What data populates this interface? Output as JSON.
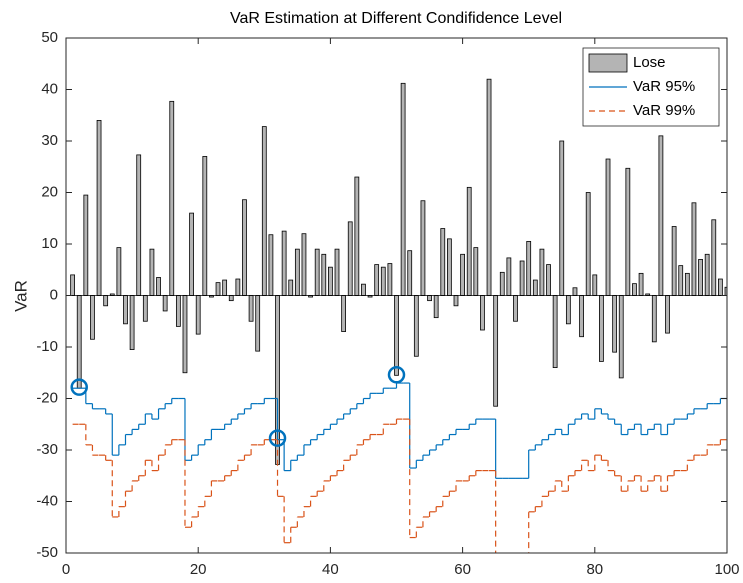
{
  "chart_data": {
    "type": "bar_stairs",
    "title": "VaR Estimation at Different Condifidence Level",
    "y_label": "VaR",
    "x": [
      1,
      2,
      3,
      4,
      5,
      6,
      7,
      8,
      9,
      10,
      11,
      12,
      13,
      14,
      15,
      16,
      17,
      18,
      19,
      20,
      21,
      22,
      23,
      24,
      25,
      26,
      27,
      28,
      29,
      30,
      31,
      32,
      33,
      34,
      35,
      36,
      37,
      38,
      39,
      40,
      41,
      42,
      43,
      44,
      45,
      46,
      47,
      48,
      49,
      50,
      51,
      52,
      53,
      54,
      55,
      56,
      57,
      58,
      59,
      60,
      61,
      62,
      63,
      64,
      65,
      66,
      67,
      68,
      69,
      70,
      71,
      72,
      73,
      74,
      75,
      76,
      77,
      78,
      79,
      80,
      81,
      82,
      83,
      84,
      85,
      86,
      87,
      88,
      89,
      90,
      91,
      92,
      93,
      94,
      95,
      96,
      97,
      98,
      99,
      100
    ],
    "series": [
      {
        "name": "Lose",
        "kind": "bar",
        "color": "#b4b4b4",
        "values": [
          4,
          -18,
          19.5,
          -8.5,
          34,
          -2,
          0.3,
          9.3,
          -5.5,
          -10.5,
          27.3,
          -5,
          9,
          3.5,
          -3,
          37.7,
          -6,
          -15,
          16,
          -7.5,
          27,
          -0.3,
          2.5,
          3,
          -1,
          3.2,
          18.6,
          -5,
          -10.8,
          32.8,
          11.8,
          -32.8,
          12.5,
          3,
          9,
          12,
          -0.3,
          9,
          8,
          5.5,
          9,
          -7,
          14.3,
          23,
          2.2,
          -0.3,
          6,
          5.5,
          6.2,
          -15.5,
          41.2,
          8.7,
          -11.8,
          18.4,
          -1,
          -4.3,
          13,
          11,
          -2,
          8,
          21,
          9.3,
          -6.7,
          42,
          -21.5,
          4.5,
          7.3,
          -5,
          6.7,
          10.5,
          3,
          9,
          6,
          -14,
          30,
          -5.5,
          1.5,
          -8,
          20,
          4,
          -12.8,
          26.5,
          -11,
          -16,
          24.7,
          2.3,
          4.3,
          0.3,
          -9,
          31,
          -7.3,
          13.4,
          5.8,
          4.3,
          18,
          7,
          8,
          14.7,
          3.2,
          1.6
        ]
      },
      {
        "name": "VaR 95%",
        "kind": "stairs",
        "color": "#0072bd",
        "dash": false,
        "values": [
          -18,
          -18,
          -21,
          -22,
          -22,
          -23,
          -31,
          -29,
          -27,
          -26,
          -25,
          -23,
          -24,
          -22,
          -21,
          -20,
          -20,
          -32,
          -31,
          -29,
          -28,
          -26,
          -26,
          -25,
          -24,
          -23,
          -22,
          -21,
          -21,
          -20,
          -20,
          -28,
          -34,
          -32,
          -31,
          -29,
          -28,
          -27,
          -26,
          -25,
          -24,
          -23,
          -22,
          -21,
          -20,
          -19,
          -19,
          -18,
          -18,
          -17,
          -17,
          -33.5,
          -32,
          -31,
          -30,
          -29,
          -28,
          -27,
          -26,
          -26,
          -25,
          -24,
          -24,
          -24,
          -35.5,
          -35.5,
          -35.5,
          -35.5,
          -35.5,
          -30,
          -29,
          -28,
          -27,
          -26,
          -27,
          -25,
          -24,
          -23,
          -24,
          -22,
          -23,
          -24,
          -25,
          -27,
          -26,
          -25,
          -27,
          -26,
          -25,
          -27,
          -25,
          -24,
          -24,
          -23,
          -22,
          -22,
          -21,
          -21,
          -20,
          -20
        ]
      },
      {
        "name": "VaR 99%",
        "kind": "stairs",
        "color": "#d95319",
        "dash": true,
        "values": [
          -25,
          -25,
          -29,
          -31,
          -31,
          -32,
          -43,
          -41,
          -38,
          -36,
          -35,
          -32,
          -34,
          -31,
          -29,
          -28,
          -28,
          -45,
          -43,
          -41,
          -39,
          -36,
          -36,
          -35,
          -34,
          -32,
          -31,
          -29,
          -29,
          -28,
          -28,
          -39,
          -48,
          -45,
          -43,
          -41,
          -39,
          -38,
          -36,
          -35,
          -34,
          -32,
          -31,
          -29,
          -28,
          -27,
          -27,
          -25,
          -25,
          -24,
          -24,
          -47,
          -45,
          -43,
          -42,
          -41,
          -39,
          -38,
          -36,
          -36,
          -35,
          -34,
          -34,
          -34,
          -51,
          -51,
          -51,
          -51,
          -51,
          -42,
          -41,
          -39,
          -38,
          -36,
          -38,
          -35,
          -34,
          -32,
          -34,
          -31,
          -32,
          -34,
          -35,
          -38,
          -36,
          -35,
          -38,
          -36,
          -35,
          -38,
          -35,
          -34,
          -34,
          -32,
          -31,
          -31,
          -29,
          -29,
          -28,
          -28
        ]
      }
    ],
    "markers": {
      "color": "#0072bd",
      "x": [
        2,
        32,
        50
      ],
      "values": [
        -17.8,
        -27.7,
        -15.4
      ]
    },
    "xlim": [
      0,
      100
    ],
    "xticks": [
      0,
      20,
      40,
      60,
      80,
      100
    ],
    "ylim": [
      -50,
      50
    ],
    "yticks": [
      -50,
      -40,
      -30,
      -20,
      -10,
      0,
      10,
      20,
      30,
      40,
      50
    ],
    "legend": "upper right"
  }
}
